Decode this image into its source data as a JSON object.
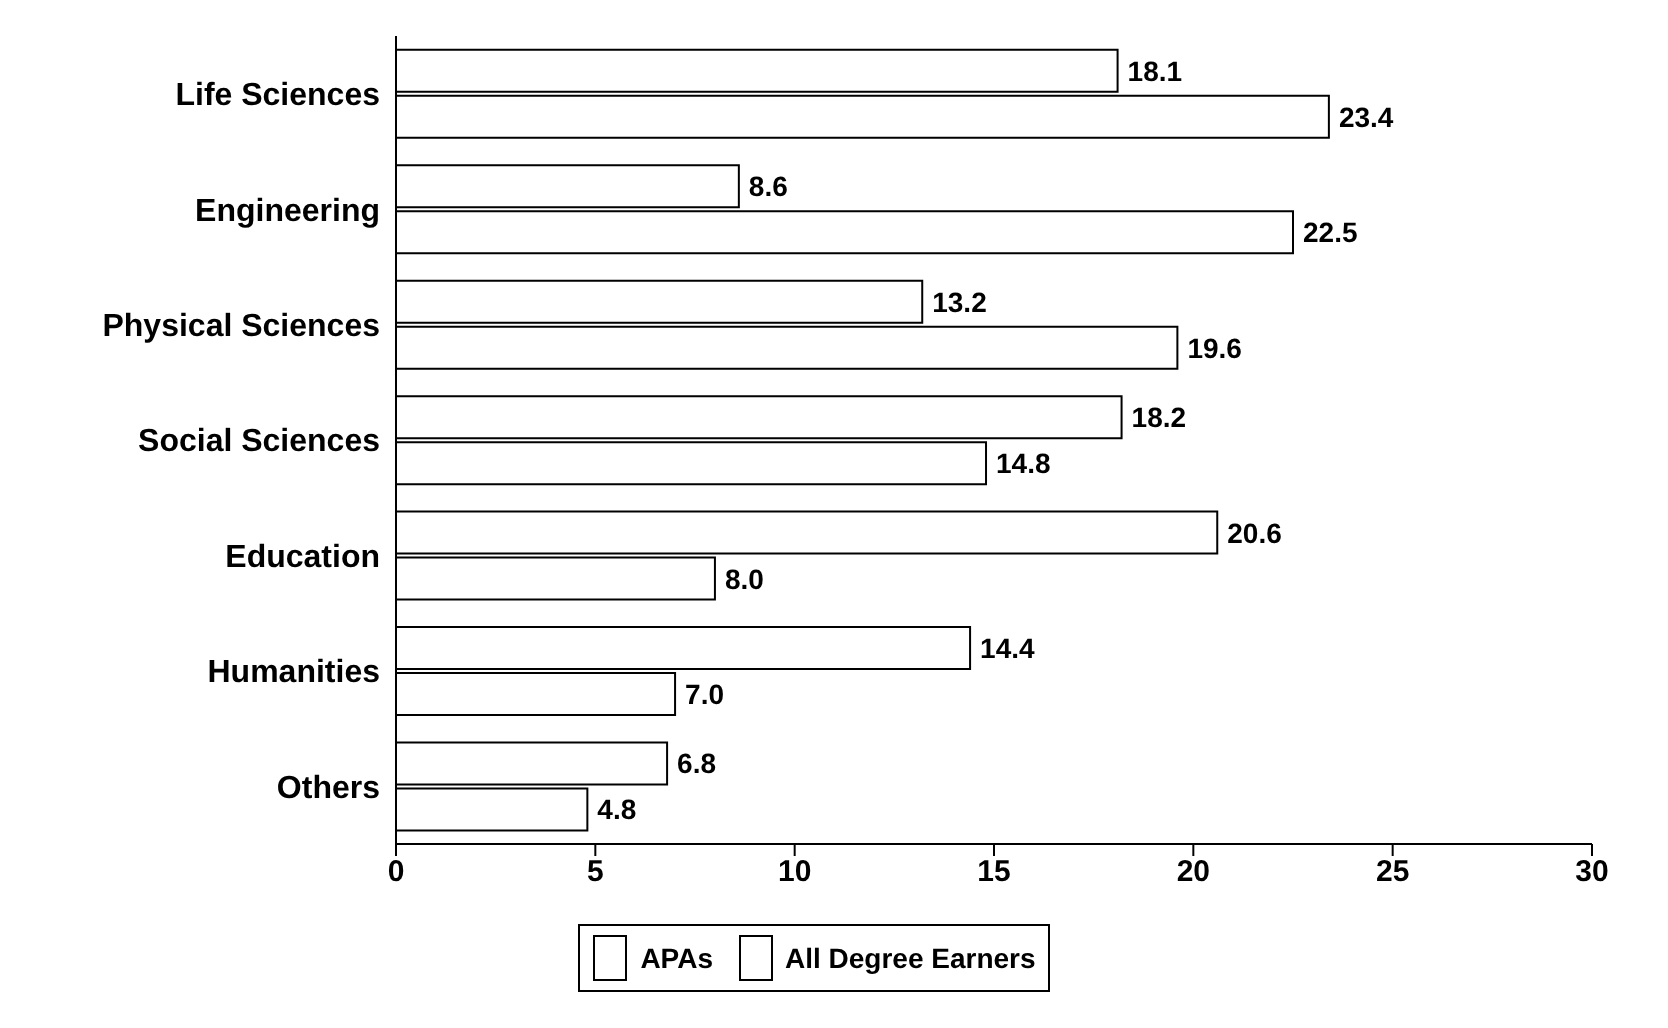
{
  "chart_data": {
    "type": "bar",
    "orientation": "horizontal",
    "categories": [
      "Life Sciences",
      "Engineering",
      "Physical Sciences",
      "Social Sciences",
      "Education",
      "Humanities",
      "Others"
    ],
    "series": [
      {
        "name": "APAs",
        "color": "#ffffff",
        "values": [
          18.1,
          8.6,
          13.2,
          18.2,
          20.6,
          14.4,
          6.8
        ],
        "value_labels": [
          "18.1",
          "8.6",
          "13.2",
          "18.2",
          "20.6",
          "14.4",
          "6.8"
        ]
      },
      {
        "name": "All Degree Earners",
        "color": "#ffffff",
        "values": [
          23.4,
          22.5,
          19.6,
          14.8,
          8.0,
          7.0,
          4.8
        ],
        "value_labels": [
          "23.4",
          "22.5",
          "19.6",
          "14.8",
          "8.0",
          "7.0",
          "4.8"
        ]
      }
    ],
    "xlim": [
      0,
      30
    ],
    "xticks": [
      0,
      5,
      10,
      15,
      20,
      25,
      30
    ],
    "grid": false,
    "legend": "bottom"
  }
}
